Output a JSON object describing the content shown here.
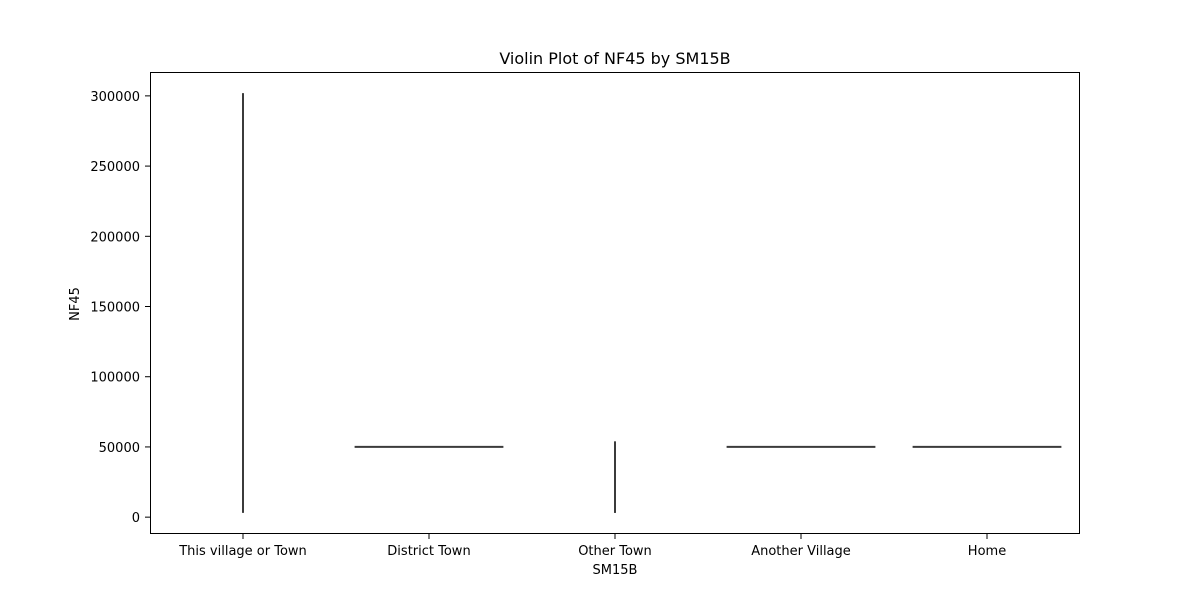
{
  "chart_data": {
    "type": "violin",
    "title": "Violin Plot of NF45 by SM15B",
    "xlabel": "SM15B",
    "ylabel": "NF45",
    "categories": [
      "This village or Town",
      "District Town",
      "Other Town",
      "Another Village",
      "Home"
    ],
    "ylim": [
      -12000,
      317000
    ],
    "yticks": [
      0,
      50000,
      100000,
      150000,
      200000,
      250000,
      300000
    ],
    "ytick_labels": [
      "0",
      "50000",
      "100000",
      "150000",
      "200000",
      "250000",
      "300000"
    ],
    "series": [
      {
        "category": "This village or Town",
        "orientation": "vertical",
        "min": 3000,
        "max": 302000
      },
      {
        "category": "District Town",
        "orientation": "horizontal",
        "value": 50000
      },
      {
        "category": "Other Town",
        "orientation": "vertical",
        "min": 3000,
        "max": 54000
      },
      {
        "category": "Another Village",
        "orientation": "horizontal",
        "value": 50000
      },
      {
        "category": "Home",
        "orientation": "horizontal",
        "value": 50000
      }
    ],
    "grid": false,
    "line_color": "#3b3b3b"
  }
}
